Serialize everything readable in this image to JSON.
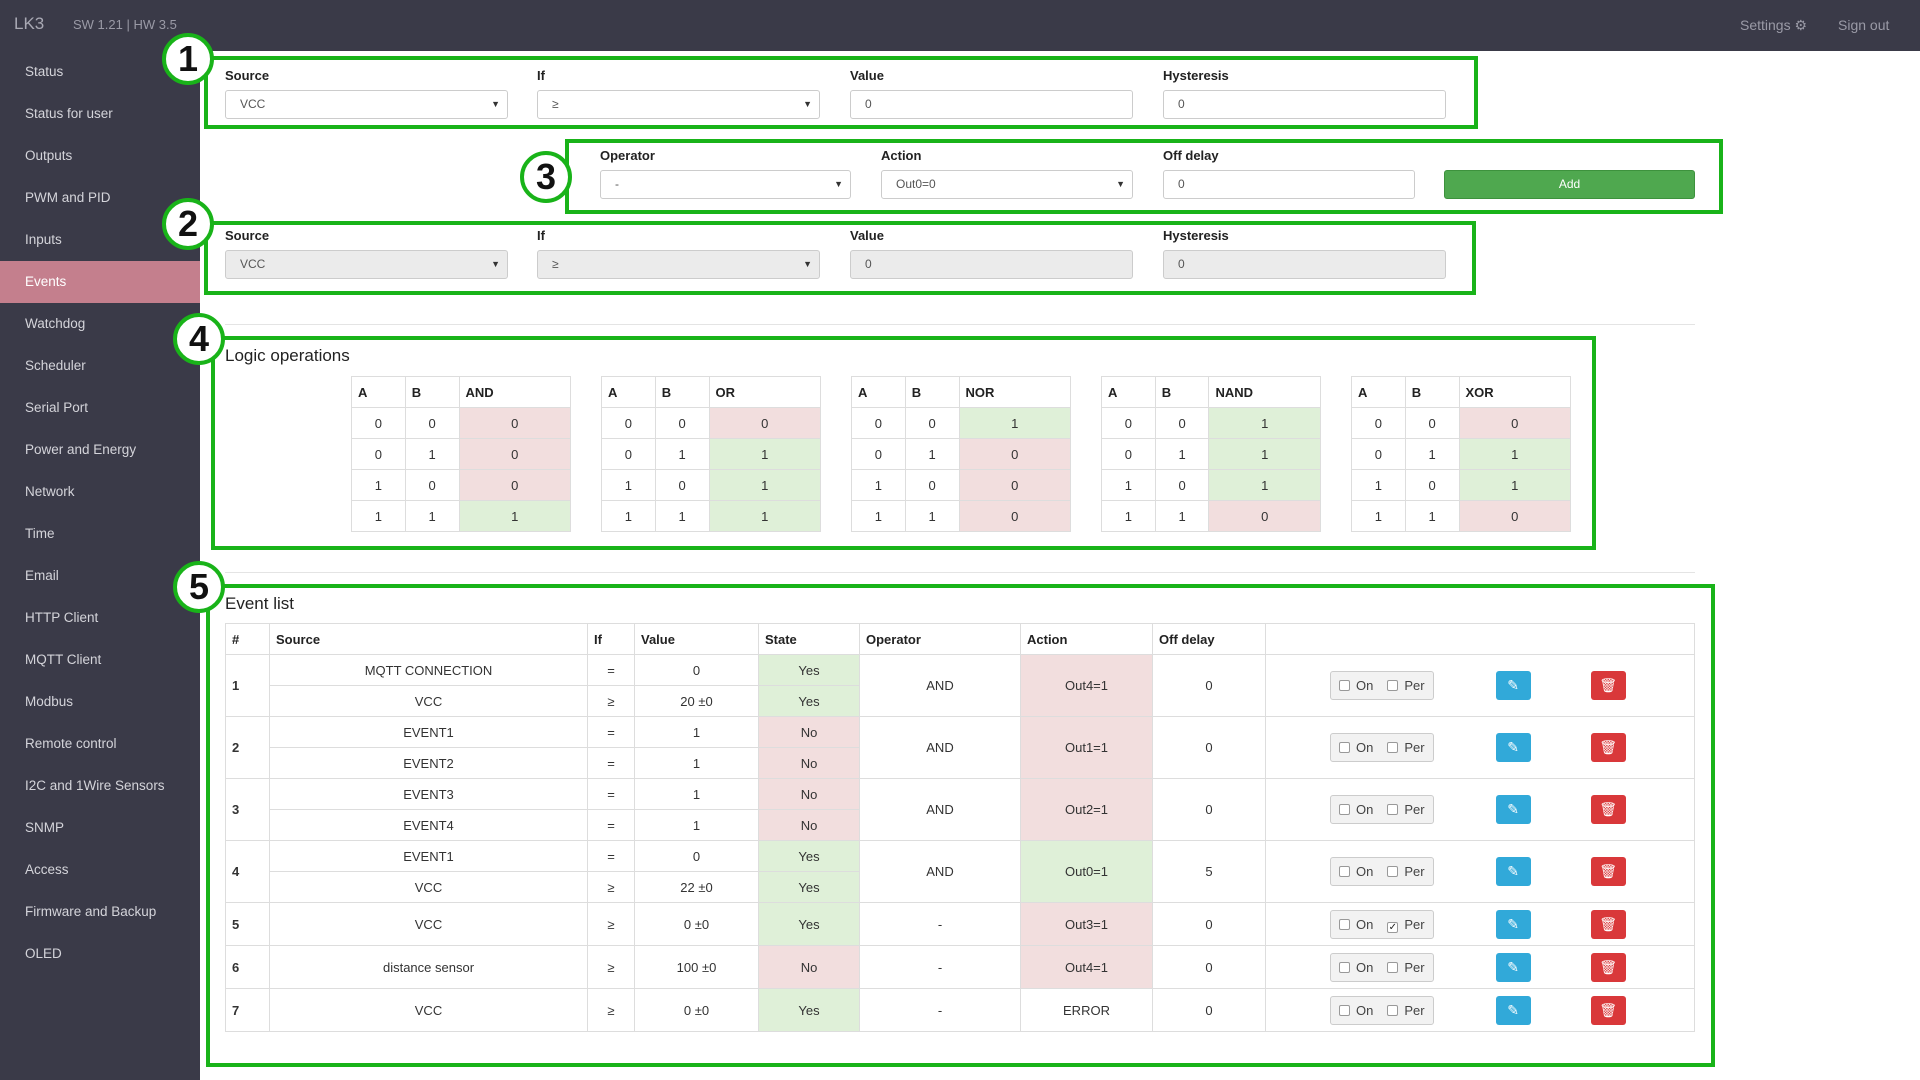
{
  "topbar": {
    "brand": "LK3",
    "version": "SW 1.21 | HW 3.5",
    "settings": "Settings",
    "signout": "Sign out",
    "settings_icon": "gear-icon"
  },
  "sidebar": {
    "items": [
      "Status",
      "Status for user",
      "Outputs",
      "PWM and PID",
      "Inputs",
      "Events",
      "Watchdog",
      "Scheduler",
      "Serial Port",
      "Power and Energy",
      "Network",
      "Time",
      "Email",
      "HTTP Client",
      "MQTT Client",
      "Modbus",
      "Remote control",
      "I2C and 1Wire Sensors",
      "SNMP",
      "Access",
      "Firmware and Backup",
      "OLED"
    ],
    "active": "Events"
  },
  "form1": {
    "source_label": "Source",
    "source_value": "VCC",
    "if_label": "If",
    "if_value": "≥",
    "value_label": "Value",
    "value_value": "0",
    "hyst_label": "Hysteresis",
    "hyst_value": "0"
  },
  "form3": {
    "operator_label": "Operator",
    "operator_value": "-",
    "action_label": "Action",
    "action_value": "Out0=0",
    "offdelay_label": "Off delay",
    "offdelay_value": "0",
    "add_label": "Add"
  },
  "form2": {
    "source_label": "Source",
    "source_value": "VCC",
    "if_label": "If",
    "if_value": "≥",
    "value_label": "Value",
    "value_value": "0",
    "hyst_label": "Hysteresis",
    "hyst_value": "0"
  },
  "markers": [
    "1",
    "2",
    "3",
    "4",
    "5"
  ],
  "logic": {
    "title": "Logic operations",
    "tables": [
      {
        "h": [
          "A",
          "B",
          "AND"
        ],
        "rows": [
          [
            "0",
            "0",
            "0"
          ],
          [
            "0",
            "1",
            "0"
          ],
          [
            "1",
            "0",
            "0"
          ],
          [
            "1",
            "1",
            "1"
          ]
        ]
      },
      {
        "h": [
          "A",
          "B",
          "OR"
        ],
        "rows": [
          [
            "0",
            "0",
            "0"
          ],
          [
            "0",
            "1",
            "1"
          ],
          [
            "1",
            "0",
            "1"
          ],
          [
            "1",
            "1",
            "1"
          ]
        ]
      },
      {
        "h": [
          "A",
          "B",
          "NOR"
        ],
        "rows": [
          [
            "0",
            "0",
            "1"
          ],
          [
            "0",
            "1",
            "0"
          ],
          [
            "1",
            "0",
            "0"
          ],
          [
            "1",
            "1",
            "0"
          ]
        ]
      },
      {
        "h": [
          "A",
          "B",
          "NAND"
        ],
        "rows": [
          [
            "0",
            "0",
            "1"
          ],
          [
            "0",
            "1",
            "1"
          ],
          [
            "1",
            "0",
            "1"
          ],
          [
            "1",
            "1",
            "0"
          ]
        ]
      },
      {
        "h": [
          "A",
          "B",
          "XOR"
        ],
        "rows": [
          [
            "0",
            "0",
            "0"
          ],
          [
            "0",
            "1",
            "1"
          ],
          [
            "1",
            "0",
            "1"
          ],
          [
            "1",
            "1",
            "0"
          ]
        ]
      }
    ]
  },
  "events": {
    "title": "Event list",
    "headers": [
      "#",
      "Source",
      "If",
      "Value",
      "State",
      "Operator",
      "Action",
      "Off delay",
      ""
    ],
    "on_label": "On",
    "per_label": "Per",
    "edit_icon": "edit-icon",
    "delete_icon": "trash-icon",
    "rows": [
      {
        "num": "1",
        "conds": [
          {
            "source": "MQTT CONNECTION",
            "if": "=",
            "value": "0",
            "state": "Yes"
          },
          {
            "source": "VCC",
            "if": "≥",
            "value": "20 ±0",
            "state": "Yes"
          }
        ],
        "operator": "AND",
        "action": "Out4=1",
        "action_ok": false,
        "off_delay": "0",
        "on": false,
        "per": false
      },
      {
        "num": "2",
        "conds": [
          {
            "source": "EVENT1",
            "if": "=",
            "value": "1",
            "state": "No"
          },
          {
            "source": "EVENT2",
            "if": "=",
            "value": "1",
            "state": "No"
          }
        ],
        "operator": "AND",
        "action": "Out1=1",
        "action_ok": false,
        "off_delay": "0",
        "on": false,
        "per": false
      },
      {
        "num": "3",
        "conds": [
          {
            "source": "EVENT3",
            "if": "=",
            "value": "1",
            "state": "No"
          },
          {
            "source": "EVENT4",
            "if": "=",
            "value": "1",
            "state": "No"
          }
        ],
        "operator": "AND",
        "action": "Out2=1",
        "action_ok": false,
        "off_delay": "0",
        "on": false,
        "per": false
      },
      {
        "num": "4",
        "conds": [
          {
            "source": "EVENT1",
            "if": "=",
            "value": "0",
            "state": "Yes"
          },
          {
            "source": "VCC",
            "if": "≥",
            "value": "22 ±0",
            "state": "Yes"
          }
        ],
        "operator": "AND",
        "action": "Out0=1",
        "action_ok": true,
        "off_delay": "5",
        "on": false,
        "per": false
      },
      {
        "num": "5",
        "conds": [
          {
            "source": "VCC",
            "if": "≥",
            "value": "0 ±0",
            "state": "Yes"
          }
        ],
        "operator": "-",
        "action": "Out3=1",
        "action_ok": false,
        "off_delay": "0",
        "on": false,
        "per": true
      },
      {
        "num": "6",
        "conds": [
          {
            "source": "distance sensor",
            "if": "≥",
            "value": "100 ±0",
            "state": "No"
          }
        ],
        "operator": "-",
        "action": "Out4=1",
        "action_ok": false,
        "off_delay": "0",
        "on": false,
        "per": false
      },
      {
        "num": "7",
        "conds": [
          {
            "source": "VCC",
            "if": "≥",
            "value": "0 ±0",
            "state": "Yes"
          }
        ],
        "operator": "-",
        "action": "ERROR",
        "action_ok": null,
        "off_delay": "0",
        "on": false,
        "per": false
      }
    ]
  },
  "colors": {
    "sidebar_bg": "#3a3a48",
    "active_item": "#c47f8d",
    "annotation_green": "#19b319",
    "cell_green": "#dff0d8",
    "cell_red": "#f2dede",
    "add_button": "#4fa84f",
    "edit_button": "#31a9d9",
    "delete_button": "#d9383a"
  }
}
